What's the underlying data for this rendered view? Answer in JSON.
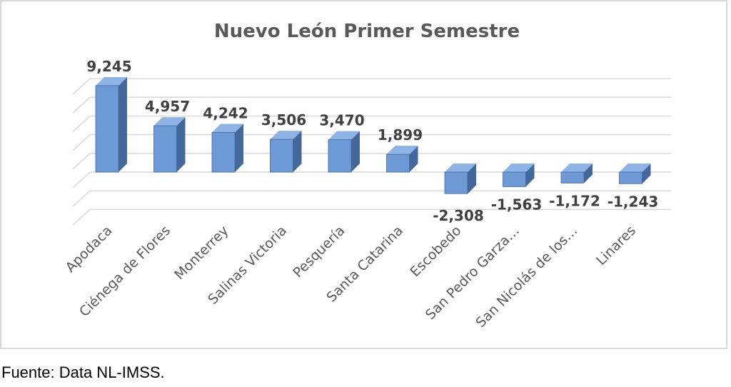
{
  "chart_data": {
    "type": "bar",
    "title": "Nuevo León Primer Semestre",
    "categories": [
      "Apodaca",
      "Ciénega de Flores",
      "Monterrey",
      "Salinas Victoria",
      "Pesquería",
      "Santa Catarina",
      "Escobedo",
      "San Pedro Garza…",
      "San Nicolás de los…",
      "Linares"
    ],
    "values": [
      9245,
      4957,
      4242,
      3506,
      3470,
      1899,
      -2308,
      -1563,
      -1172,
      -1243
    ],
    "value_labels": [
      "9,245",
      "4,957",
      "4,242",
      "3,506",
      "3,470",
      "1,899",
      "-2,308",
      "-1,563",
      "-1,172",
      "-1,243"
    ],
    "ylim": [
      -4000,
      10000
    ],
    "grid": true,
    "legend": "none",
    "style": "3d-column",
    "colors": {
      "bar_front": "#6d9ad6",
      "bar_side": "#44679c",
      "bar_top": "#8eb3e4",
      "grid": "#d9d9d9",
      "title": "#595959",
      "label": "#404040"
    }
  },
  "footnote": "Fuente: Data NL-IMSS."
}
